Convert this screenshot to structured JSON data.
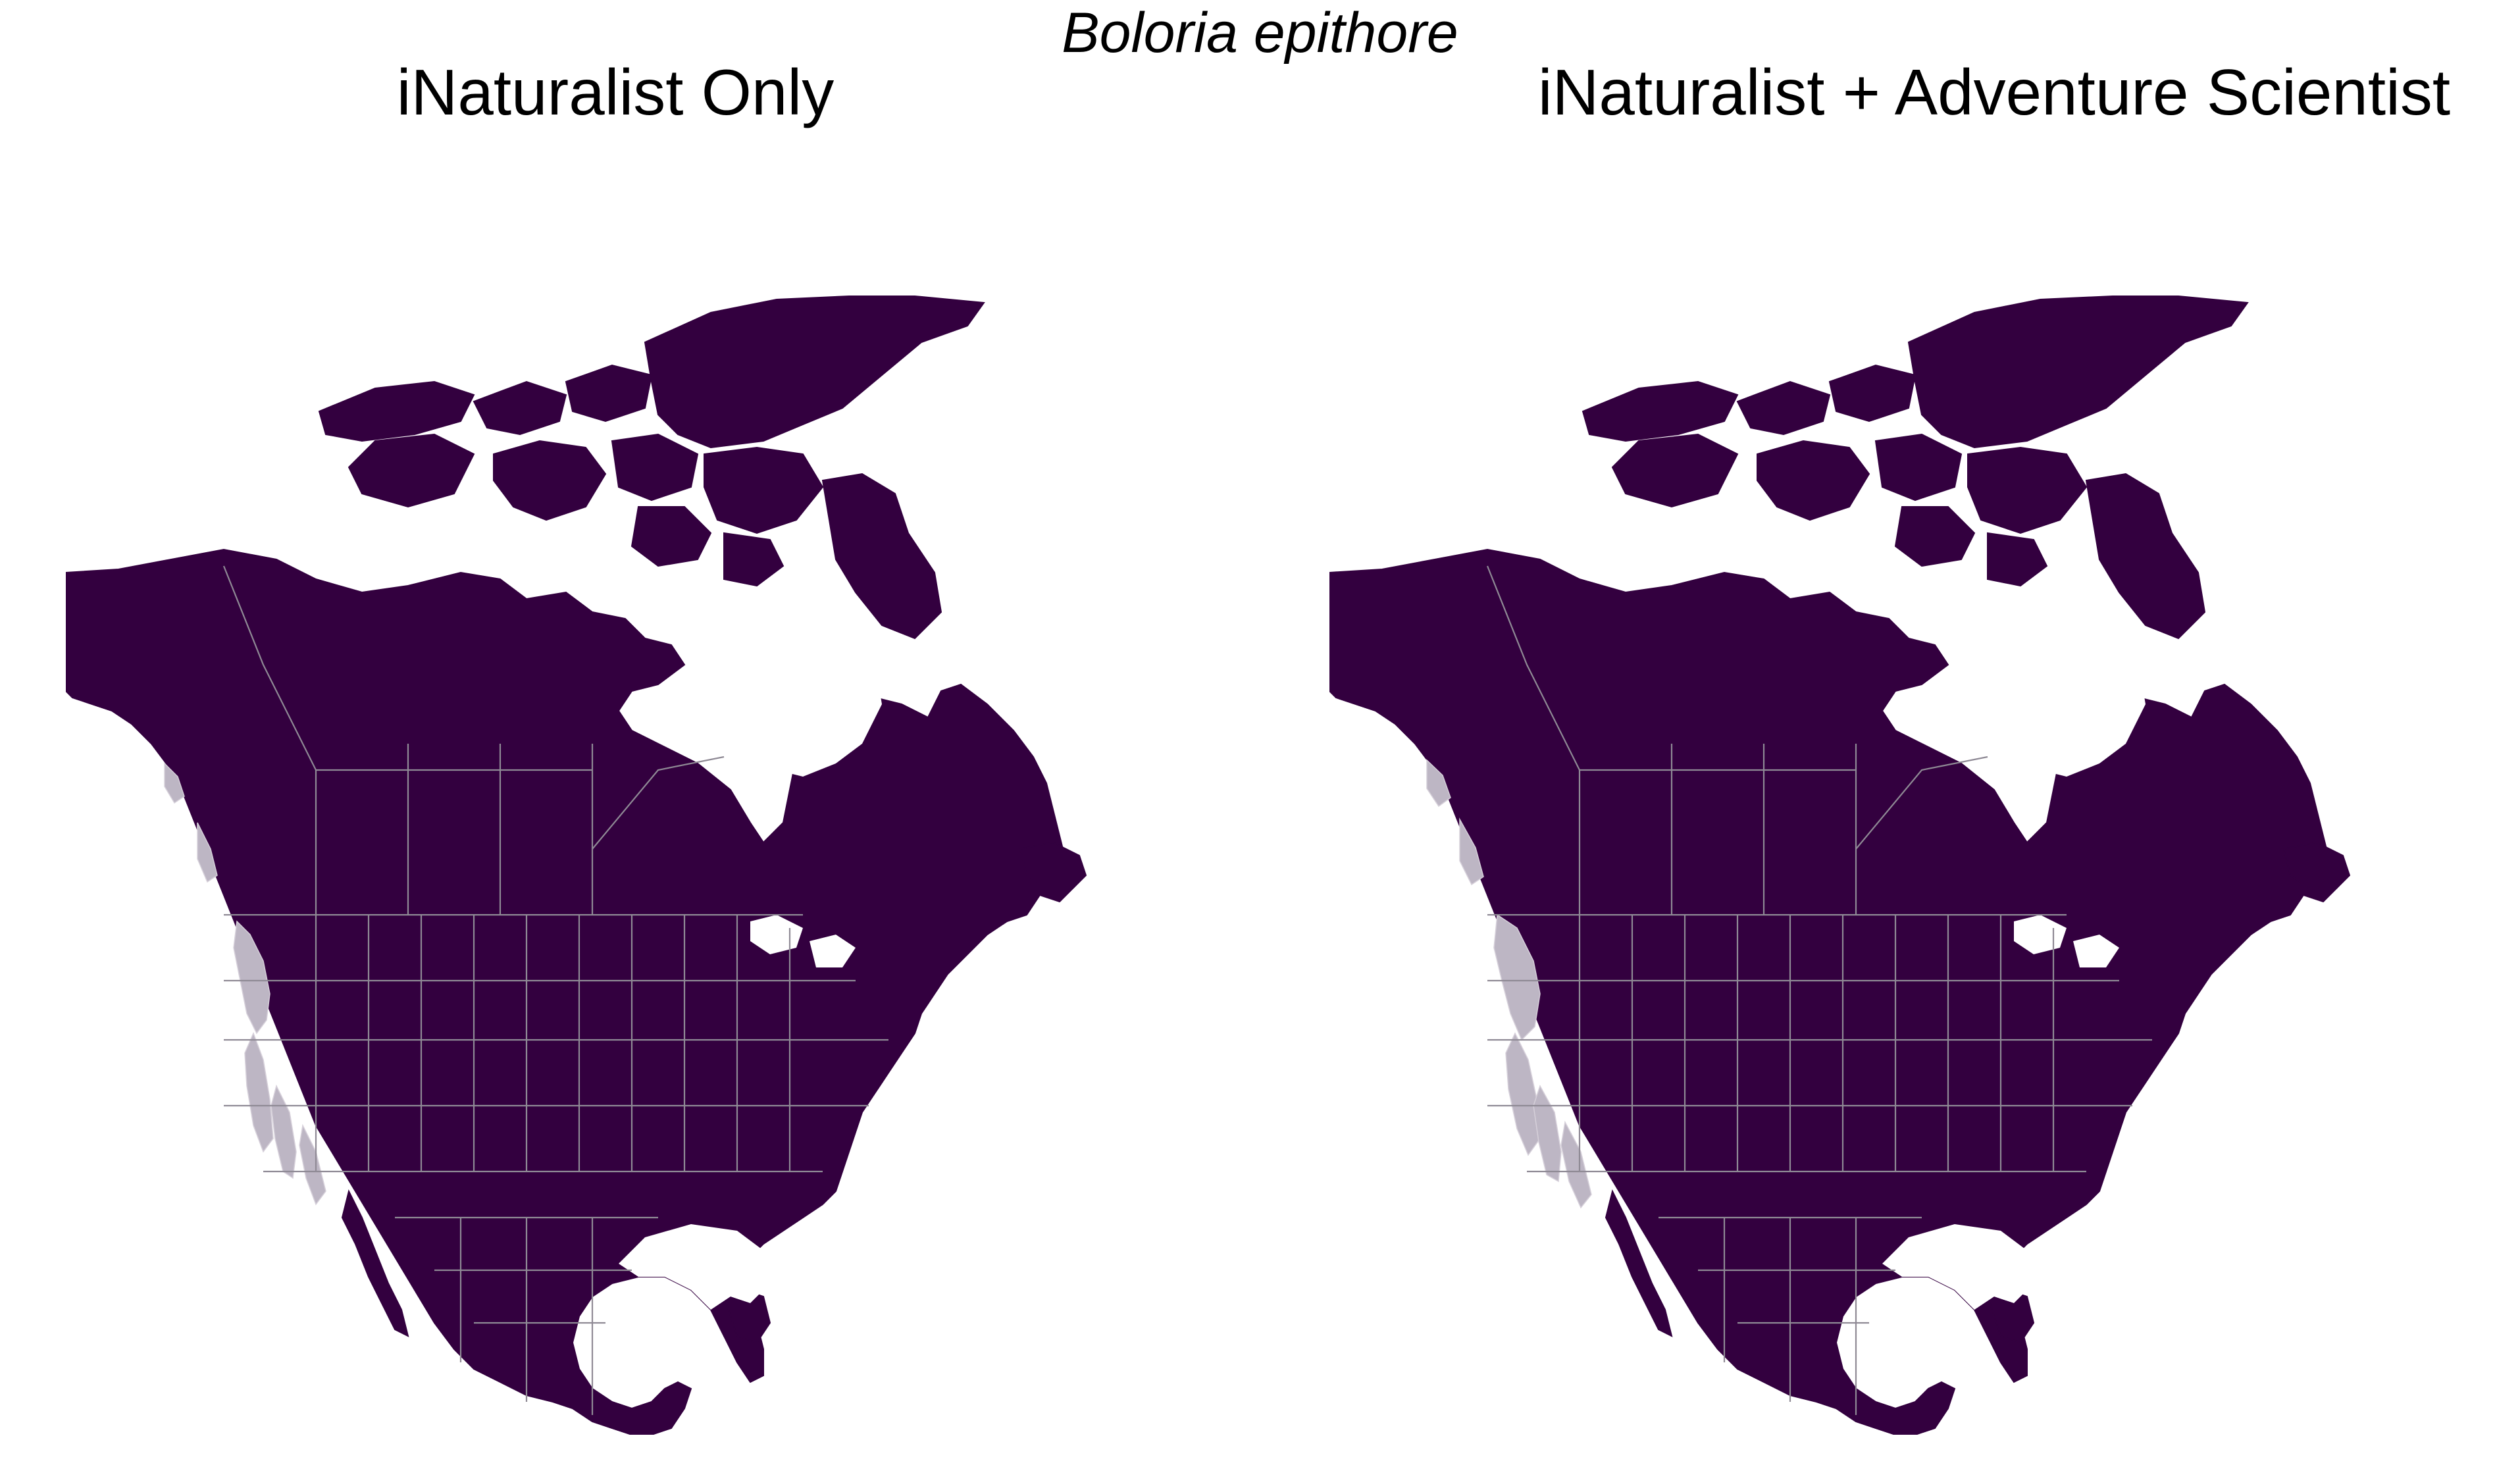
{
  "figure": {
    "title": "Boloria epithore"
  },
  "panels": [
    {
      "title": "iNaturalist Only"
    },
    {
      "title": "iNaturalist + Adventure Scientist"
    }
  ],
  "colors": {
    "land": "#33003f",
    "suitable_habitat": "#bdb6c4",
    "borders": "#8f8a95",
    "background": "#ffffff"
  }
}
